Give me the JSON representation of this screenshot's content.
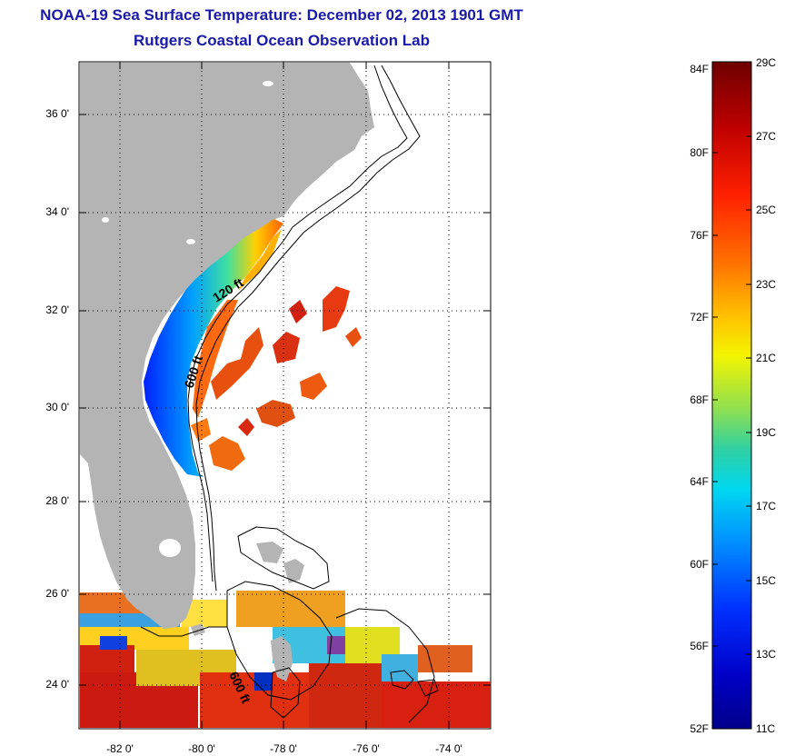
{
  "title": {
    "line1": "NOAA-19 Sea Surface Temperature:  December 02, 2013 1901 GMT",
    "line2": "Rutgers Coastal Ocean Observation Lab"
  },
  "map": {
    "lat_ticks": [
      "36 0'",
      "34 0'",
      "32 0'",
      "30 0'",
      "28 0'",
      "26 0'",
      "24 0'"
    ],
    "lon_ticks": [
      "-82 0'",
      "-80 0'",
      "-78 0'",
      "-76 0'",
      "-74 0'"
    ],
    "contour_labels": [
      "120 ft",
      "600 ft",
      "600 ft"
    ],
    "land_color": "#b4b4b4",
    "grid": "dotted"
  },
  "colorbar": {
    "fahrenheit": [
      "84F",
      "80F",
      "76F",
      "72F",
      "68F",
      "64F",
      "60F",
      "56F",
      "52F"
    ],
    "celsius": [
      "29C",
      "27C",
      "25C",
      "23C",
      "21C",
      "19C",
      "17C",
      "15C",
      "13C",
      "11C"
    ],
    "colormap": [
      "#7a0000",
      "#c00000",
      "#ff1a00",
      "#ff6a00",
      "#ffb000",
      "#f0f000",
      "#90e040",
      "#30d0a0",
      "#00c8ff",
      "#0080ff",
      "#0020ff",
      "#000090"
    ]
  }
}
